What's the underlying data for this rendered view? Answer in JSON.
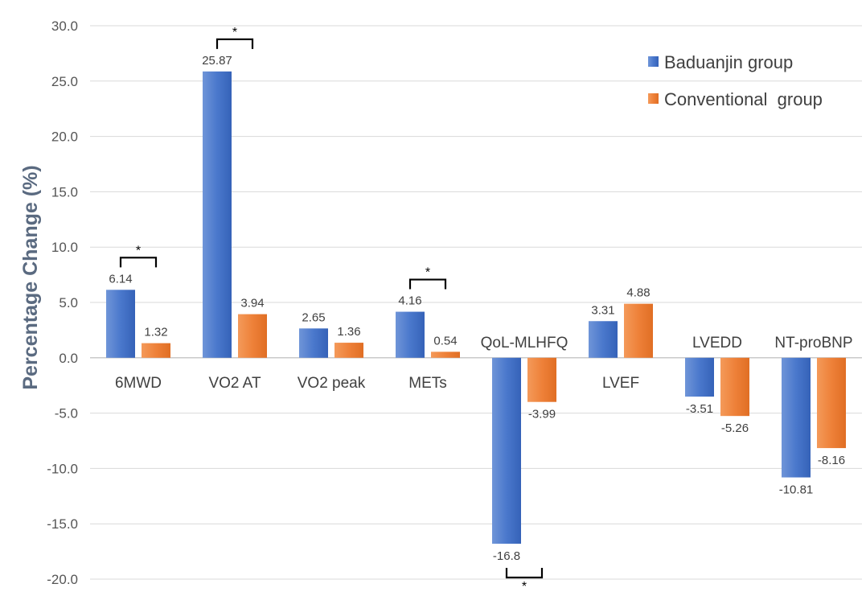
{
  "chart_data": {
    "type": "bar",
    "title": "",
    "xlabel": "",
    "ylabel": "Percentage Change (%)",
    "ylim": [
      -20,
      30
    ],
    "yticks": [
      "30.0",
      "25.0",
      "20.0",
      "15.0",
      "10.0",
      "5.0",
      "0.0",
      "-5.0",
      "-10.0",
      "-15.0",
      "-20.0"
    ],
    "ytick_values": [
      30,
      25,
      20,
      15,
      10,
      5,
      0,
      -5,
      -10,
      -15,
      -20
    ],
    "grid": true,
    "legend_position": "top-right",
    "categories": [
      "6MWD",
      "VO2 AT",
      "VO2 peak",
      "METs",
      "QoL-MLHFQ",
      "LVEF",
      "LVEDD",
      "NT-proBNP"
    ],
    "series": [
      {
        "name": "Baduanjin group",
        "color": "#4472c4",
        "values": [
          6.14,
          25.87,
          2.65,
          4.16,
          -16.8,
          3.31,
          -3.51,
          -10.81
        ],
        "labels": [
          "6.14",
          "25.87",
          "2.65",
          "4.16",
          "-16.8",
          "3.31",
          "-3.51",
          "-10.81"
        ]
      },
      {
        "name": "Conventional  group",
        "color": "#ed7d31",
        "values": [
          1.32,
          3.94,
          1.36,
          0.54,
          -3.99,
          4.88,
          -5.26,
          -8.16
        ],
        "labels": [
          "1.32",
          "3.94",
          "1.36",
          "0.54",
          "-3.99",
          "4.88",
          "-5.26",
          "-8.16"
        ]
      }
    ],
    "significance": [
      {
        "category": "6MWD",
        "label": "*"
      },
      {
        "category": "VO2 AT",
        "label": "*"
      },
      {
        "category": "METs",
        "label": "*"
      },
      {
        "category": "QoL-MLHFQ",
        "label": "*"
      }
    ]
  }
}
